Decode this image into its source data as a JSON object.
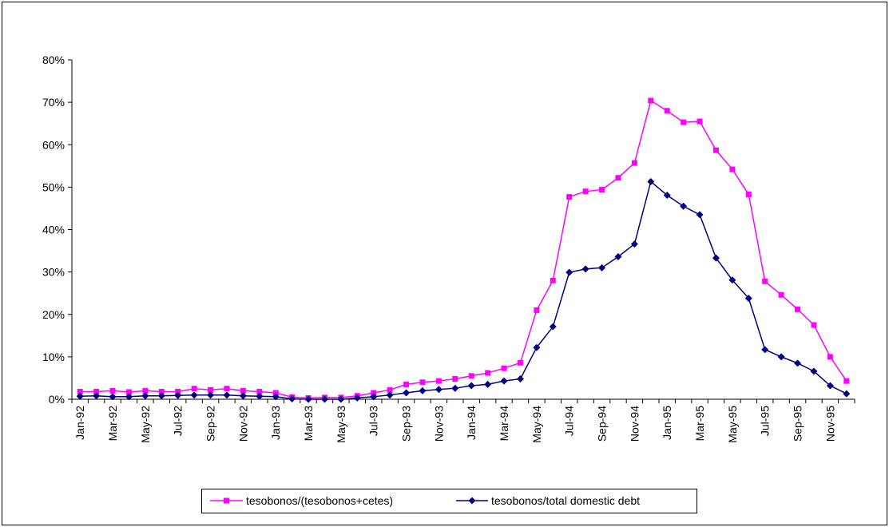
{
  "chart_data": {
    "type": "line",
    "title": "",
    "xlabel": "",
    "ylabel": "",
    "ylim": [
      0,
      80
    ],
    "y_ticks": [
      "0%",
      "10%",
      "20%",
      "30%",
      "40%",
      "50%",
      "60%",
      "70%",
      "80%"
    ],
    "y_tick_values": [
      0,
      10,
      20,
      30,
      40,
      50,
      60,
      70,
      80
    ],
    "grid": false,
    "legend_position": "bottom-center",
    "categories": [
      "Jan-92",
      "Feb-92",
      "Mar-92",
      "Apr-92",
      "May-92",
      "Jun-92",
      "Jul-92",
      "Aug-92",
      "Sep-92",
      "Oct-92",
      "Nov-92",
      "Dec-92",
      "Jan-93",
      "Feb-93",
      "Mar-93",
      "Apr-93",
      "May-93",
      "Jun-93",
      "Jul-93",
      "Aug-93",
      "Sep-93",
      "Oct-93",
      "Nov-93",
      "Dec-93",
      "Jan-94",
      "Feb-94",
      "Mar-94",
      "Apr-94",
      "May-94",
      "Jun-94",
      "Jul-94",
      "Aug-94",
      "Sep-94",
      "Oct-94",
      "Nov-94",
      "Dec-94",
      "Jan-95",
      "Feb-95",
      "Mar-95",
      "Apr-95",
      "May-95",
      "Jun-95",
      "Jul-95",
      "Aug-95",
      "Sep-95",
      "Oct-95",
      "Nov-95",
      "Dec-95"
    ],
    "x_tick_labels": [
      "Jan-92",
      "Mar-92",
      "May-92",
      "Jul-92",
      "Sep-92",
      "Nov-92",
      "Jan-93",
      "Mar-93",
      "May-93",
      "Jul-93",
      "Sep-93",
      "Nov-93",
      "Jan-94",
      "Mar-94",
      "May-94",
      "Jul-94",
      "Sep-94",
      "Nov-94",
      "Jan-95",
      "Mar-95",
      "May-95",
      "Jul-95",
      "Sep-95",
      "Nov-95"
    ],
    "series": [
      {
        "name": "tesobonos/(tesobonos+cetes)",
        "color": "#ff00ff",
        "marker": "square",
        "values": [
          1.8,
          1.8,
          2.0,
          1.7,
          2.0,
          1.8,
          1.8,
          2.5,
          2.2,
          2.5,
          2.0,
          1.8,
          1.5,
          0.5,
          0.3,
          0.4,
          0.4,
          0.8,
          1.5,
          2.2,
          3.5,
          4.0,
          4.3,
          4.8,
          5.5,
          6.2,
          7.3,
          8.6,
          21.0,
          28.0,
          47.7,
          49.0,
          49.4,
          52.2,
          55.7,
          70.4,
          68.0,
          65.3,
          65.5,
          58.7,
          54.2,
          48.3,
          27.8,
          24.6,
          21.2,
          17.5,
          10.0,
          4.3
        ]
      },
      {
        "name": "tesobonos/total domestic debt",
        "color": "#000080",
        "marker": "diamond",
        "values": [
          0.7,
          0.8,
          0.6,
          0.6,
          0.8,
          0.8,
          0.9,
          1.0,
          1.0,
          1.0,
          0.8,
          0.7,
          0.6,
          0.1,
          0.0,
          0.0,
          0.0,
          0.3,
          0.6,
          1.0,
          1.5,
          2.0,
          2.3,
          2.6,
          3.2,
          3.5,
          4.3,
          4.8,
          12.2,
          17.1,
          29.9,
          30.7,
          31.0,
          33.6,
          36.6,
          51.3,
          48.1,
          45.5,
          43.5,
          33.3,
          28.1,
          23.8,
          11.7,
          10.0,
          8.5,
          6.6,
          3.2,
          1.3
        ]
      }
    ]
  }
}
